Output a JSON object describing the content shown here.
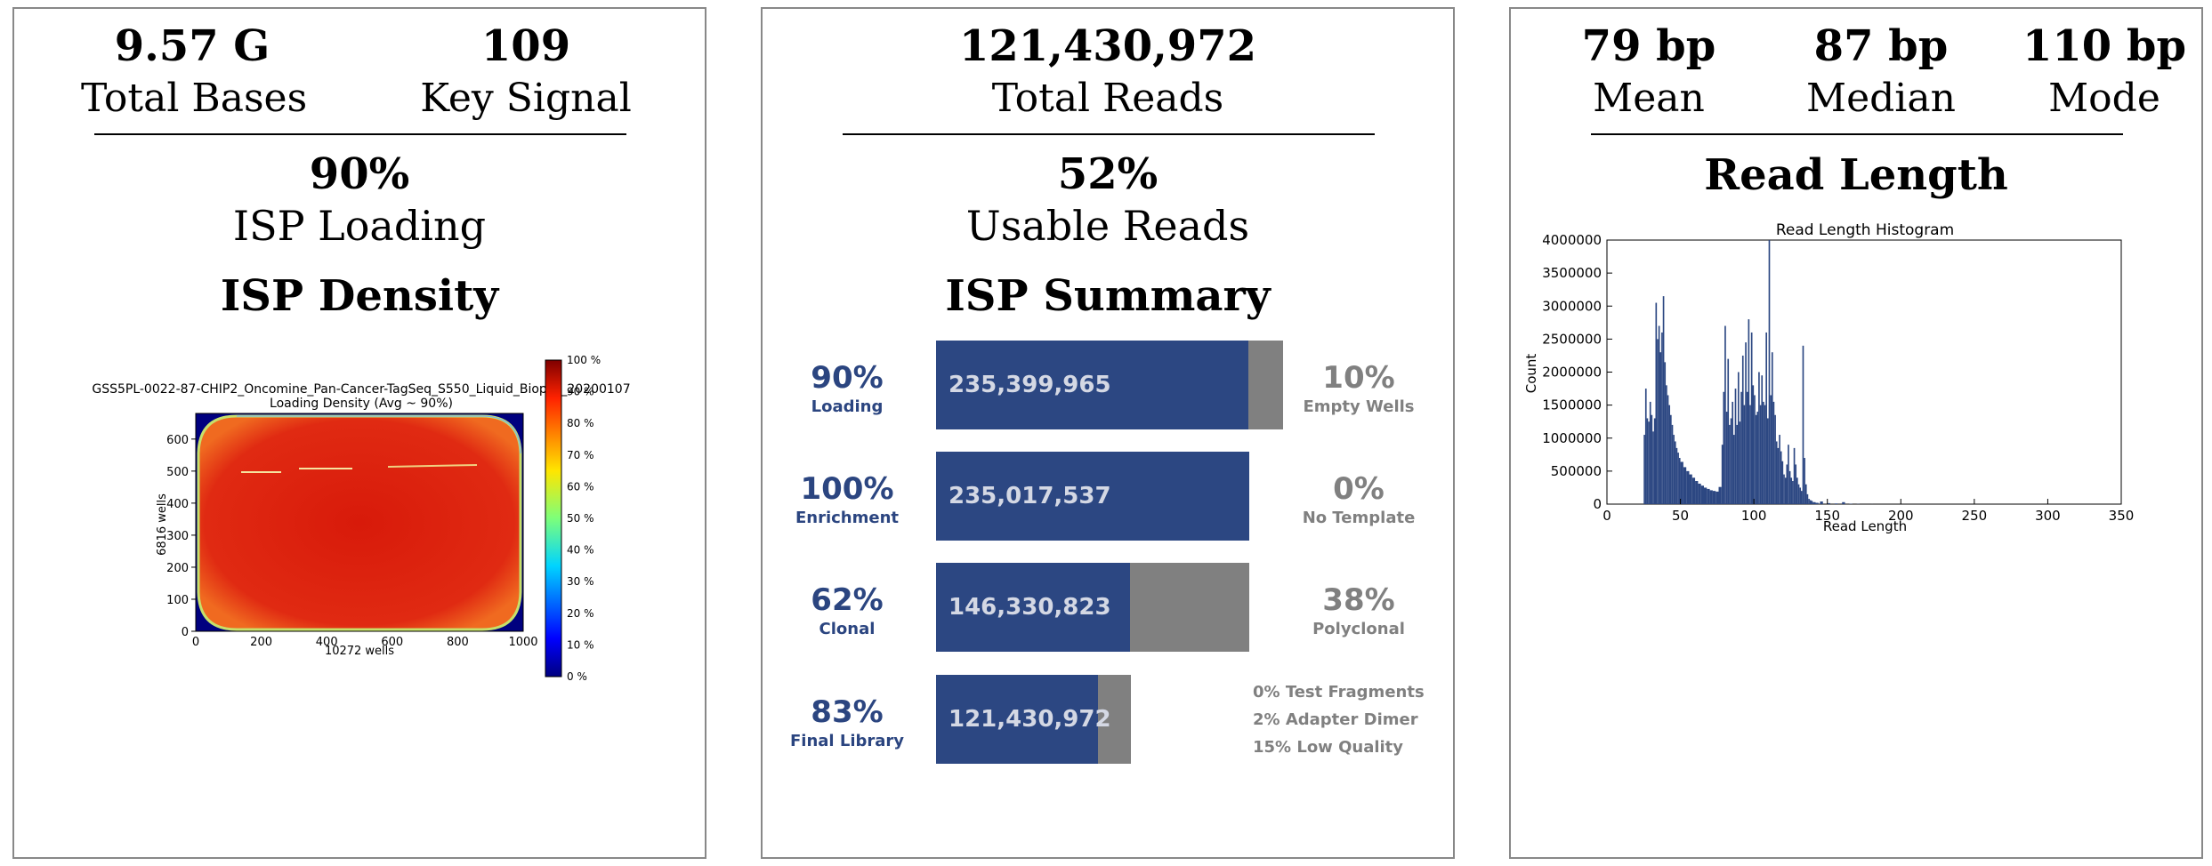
{
  "panel1": {
    "stat1_value": "9.57 G",
    "stat1_label": "Total Bases",
    "stat2_value": "109",
    "stat2_label": "Key Signal",
    "loading_pct": "90%",
    "loading_label": "ISP Loading",
    "section_title": "ISP Density",
    "heatmap": {
      "title_line1": "GSS5PL-0022-87-CHIP2_Oncomine_Pan-Cancer-TagSeq_S550_Liquid_Biopsy_20200107",
      "title_line2": "Loading Density (Avg ~ 90%)",
      "xlabel": "10272 wells",
      "ylabel": "6816 wells",
      "x_ticks": [
        "0",
        "200",
        "400",
        "600",
        "800",
        "1000"
      ],
      "y_ticks": [
        "0",
        "100",
        "200",
        "300",
        "400",
        "500",
        "600"
      ],
      "colorbar_ticks": [
        "0 %",
        "10 %",
        "20 %",
        "30 %",
        "40 %",
        "50 %",
        "60 %",
        "70 %",
        "80 %",
        "90 %",
        "100 %"
      ]
    }
  },
  "panel2": {
    "total_reads_value": "121,430,972",
    "total_reads_label": "Total Reads",
    "usable_pct": "52%",
    "usable_label": "Usable Reads",
    "section_title": "ISP Summary",
    "rows": [
      {
        "left_pct": "90%",
        "left_label": "Loading",
        "count": "235,399,965",
        "right_pct": "10%",
        "right_label": "Empty Wells",
        "blue_fraction": 0.9
      },
      {
        "left_pct": "100%",
        "left_label": "Enrichment",
        "count": "235,017,537",
        "right_pct": "0%",
        "right_label": "No Template",
        "blue_fraction": 1.0
      },
      {
        "left_pct": "62%",
        "left_label": "Clonal",
        "count": "146,330,823",
        "right_pct": "38%",
        "right_label": "Polyclonal",
        "blue_fraction": 0.62
      },
      {
        "left_pct": "83%",
        "left_label": "Final Library",
        "count": "121,430,972",
        "right_pct": "",
        "right_label": "",
        "blue_fraction": 0.83
      }
    ],
    "notes": [
      "0% Test Fragments",
      "2% Adapter Dimer",
      "15% Low Quality"
    ],
    "colors": {
      "blue": "#2c4782",
      "grey": "#808080"
    }
  },
  "panel3": {
    "mean_value": "79 bp",
    "mean_label": "Mean",
    "median_value": "87 bp",
    "median_label": "Median",
    "mode_value": "110 bp",
    "mode_label": "Mode",
    "section_title": "Read Length",
    "chart_data": {
      "type": "bar",
      "title": "Read Length Histogram",
      "xlabel": "Read Length",
      "ylabel": "Count",
      "xlim": [
        0,
        350
      ],
      "ylim": [
        0,
        4000000
      ],
      "x_ticks": [
        "0",
        "50",
        "100",
        "150",
        "200",
        "250",
        "300",
        "350"
      ],
      "y_ticks": [
        "0",
        "500000",
        "1000000",
        "1500000",
        "2000000",
        "2500000",
        "3000000",
        "3500000",
        "4000000"
      ],
      "color": "#2c4782",
      "x": [
        25,
        26,
        27,
        28,
        29,
        30,
        31,
        32,
        33,
        34,
        35,
        36,
        37,
        38,
        39,
        40,
        41,
        42,
        43,
        44,
        45,
        46,
        47,
        48,
        49,
        50,
        52,
        54,
        56,
        58,
        60,
        62,
        64,
        66,
        68,
        70,
        72,
        74,
        76,
        78,
        79,
        80,
        81,
        82,
        83,
        84,
        85,
        86,
        87,
        88,
        89,
        90,
        91,
        92,
        93,
        94,
        95,
        96,
        97,
        98,
        99,
        100,
        101,
        102,
        103,
        104,
        105,
        106,
        107,
        108,
        109,
        110,
        111,
        112,
        113,
        114,
        115,
        116,
        117,
        118,
        119,
        120,
        121,
        122,
        123,
        124,
        125,
        126,
        127,
        128,
        129,
        130,
        131,
        132,
        133,
        134,
        135,
        136,
        137,
        138,
        139,
        140,
        142,
        145,
        150,
        155,
        160,
        165,
        170,
        180
      ],
      "values": [
        1050000,
        1750000,
        1300000,
        1250000,
        1550000,
        1350000,
        1100000,
        1300000,
        3050000,
        2500000,
        2700000,
        2300000,
        2600000,
        3150000,
        2150000,
        1800000,
        1650000,
        1500000,
        1350000,
        1200000,
        1050000,
        950000,
        850000,
        780000,
        700000,
        640000,
        560000,
        500000,
        450000,
        400000,
        350000,
        310000,
        280000,
        250000,
        230000,
        210000,
        200000,
        190000,
        260000,
        900000,
        1700000,
        2700000,
        1400000,
        2200000,
        1200000,
        1300000,
        1550000,
        1050000,
        1750000,
        1200000,
        2000000,
        1250000,
        1700000,
        2250000,
        1500000,
        2450000,
        1700000,
        2800000,
        1500000,
        2600000,
        1800000,
        1650000,
        1350000,
        1400000,
        2000000,
        1500000,
        1950000,
        1550000,
        1500000,
        2600000,
        1300000,
        4000000,
        1650000,
        2300000,
        1550000,
        1350000,
        950000,
        850000,
        1050000,
        800000,
        650000,
        450000,
        400000,
        600000,
        900000,
        500000,
        400000,
        350000,
        850000,
        600000,
        400000,
        300000,
        250000,
        200000,
        2400000,
        700000,
        300000,
        150000,
        80000,
        60000,
        50000,
        30000,
        20000,
        40000,
        15000,
        10000,
        30000,
        5000,
        3000,
        1000
      ]
    }
  }
}
